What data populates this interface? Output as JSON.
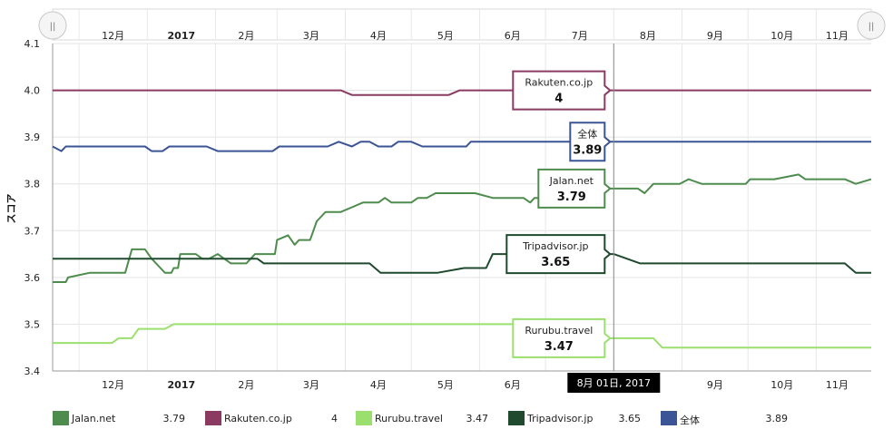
{
  "chart_data": {
    "type": "line",
    "ylabel": "スコア",
    "ylim": [
      3.4,
      4.1
    ],
    "yticks": [
      "3.4",
      "3.5",
      "3.6",
      "3.7",
      "3.8",
      "3.9",
      "4.0",
      "4.1"
    ],
    "x_range": [
      "2016-11-19",
      "2017-11-26"
    ],
    "month_labels": [
      {
        "label": "12月",
        "date": "2016-12-01",
        "bold": false
      },
      {
        "label": "2017",
        "date": "2017-01-01",
        "bold": true
      },
      {
        "label": "2月",
        "date": "2017-02-01",
        "bold": false
      },
      {
        "label": "3月",
        "date": "2017-03-01",
        "bold": false
      },
      {
        "label": "4月",
        "date": "2017-04-01",
        "bold": false
      },
      {
        "label": "5月",
        "date": "2017-05-01",
        "bold": false
      },
      {
        "label": "6月",
        "date": "2017-06-01",
        "bold": false
      },
      {
        "label": "7月",
        "date": "2017-07-01",
        "bold": false
      },
      {
        "label": "8月",
        "date": "2017-08-01",
        "bold": false
      },
      {
        "label": "9月",
        "date": "2017-09-01",
        "bold": false
      },
      {
        "label": "10月",
        "date": "2017-10-01",
        "bold": false
      },
      {
        "label": "11月",
        "date": "2017-11-01",
        "bold": false
      }
    ],
    "series": [
      {
        "name": "Rakuten.co.jp",
        "color": "#8b3a62",
        "current": "4",
        "points": [
          [
            "2016-11-19",
            4.0
          ],
          [
            "2017-03-30",
            4.0
          ],
          [
            "2017-04-04",
            3.99
          ],
          [
            "2017-05-18",
            3.99
          ],
          [
            "2017-05-23",
            4.0
          ],
          [
            "2017-11-26",
            4.0
          ]
        ]
      },
      {
        "name": "全体",
        "color": "#3a5495",
        "current": "3.89",
        "points": [
          [
            "2016-11-19",
            3.88
          ],
          [
            "2016-11-23",
            3.87
          ],
          [
            "2016-11-25",
            3.88
          ],
          [
            "2016-12-31",
            3.88
          ],
          [
            "2017-01-03",
            3.87
          ],
          [
            "2017-01-08",
            3.87
          ],
          [
            "2017-01-11",
            3.88
          ],
          [
            "2017-01-28",
            3.88
          ],
          [
            "2017-02-02",
            3.87
          ],
          [
            "2017-02-27",
            3.87
          ],
          [
            "2017-03-02",
            3.88
          ],
          [
            "2017-03-24",
            3.88
          ],
          [
            "2017-03-29",
            3.89
          ],
          [
            "2017-04-04",
            3.88
          ],
          [
            "2017-04-08",
            3.89
          ],
          [
            "2017-04-12",
            3.89
          ],
          [
            "2017-04-16",
            3.88
          ],
          [
            "2017-04-22",
            3.88
          ],
          [
            "2017-04-25",
            3.89
          ],
          [
            "2017-05-01",
            3.89
          ],
          [
            "2017-05-06",
            3.88
          ],
          [
            "2017-05-26",
            3.88
          ],
          [
            "2017-05-28",
            3.89
          ],
          [
            "2017-11-26",
            3.89
          ]
        ]
      },
      {
        "name": "Jalan.net",
        "color": "#4e8c4e",
        "current": "3.79",
        "points": [
          [
            "2016-11-19",
            3.59
          ],
          [
            "2016-11-25",
            3.59
          ],
          [
            "2016-11-26",
            3.6
          ],
          [
            "2016-12-06",
            3.61
          ],
          [
            "2016-12-22",
            3.61
          ],
          [
            "2016-12-25",
            3.66
          ],
          [
            "2016-12-31",
            3.66
          ],
          [
            "2017-01-03",
            3.64
          ],
          [
            "2017-01-07",
            3.62
          ],
          [
            "2017-01-09",
            3.61
          ],
          [
            "2017-01-12",
            3.61
          ],
          [
            "2017-01-13",
            3.62
          ],
          [
            "2017-01-15",
            3.62
          ],
          [
            "2017-01-16",
            3.65
          ],
          [
            "2017-01-23",
            3.65
          ],
          [
            "2017-01-26",
            3.64
          ],
          [
            "2017-01-29",
            3.64
          ],
          [
            "2017-02-02",
            3.65
          ],
          [
            "2017-02-05",
            3.64
          ],
          [
            "2017-02-08",
            3.63
          ],
          [
            "2017-02-15",
            3.63
          ],
          [
            "2017-02-19",
            3.65
          ],
          [
            "2017-02-25",
            3.65
          ],
          [
            "2017-02-28",
            3.65
          ],
          [
            "2017-03-01",
            3.68
          ],
          [
            "2017-03-06",
            3.69
          ],
          [
            "2017-03-09",
            3.67
          ],
          [
            "2017-03-11",
            3.68
          ],
          [
            "2017-03-16",
            3.68
          ],
          [
            "2017-03-19",
            3.72
          ],
          [
            "2017-03-23",
            3.74
          ],
          [
            "2017-03-30",
            3.74
          ],
          [
            "2017-04-04",
            3.75
          ],
          [
            "2017-04-09",
            3.76
          ],
          [
            "2017-04-16",
            3.76
          ],
          [
            "2017-04-19",
            3.77
          ],
          [
            "2017-04-22",
            3.76
          ],
          [
            "2017-05-01",
            3.76
          ],
          [
            "2017-05-04",
            3.77
          ],
          [
            "2017-05-08",
            3.77
          ],
          [
            "2017-05-12",
            3.78
          ],
          [
            "2017-05-30",
            3.78
          ],
          [
            "2017-06-07",
            3.77
          ],
          [
            "2017-06-21",
            3.77
          ],
          [
            "2017-06-24",
            3.76
          ],
          [
            "2017-06-26",
            3.77
          ],
          [
            "2017-06-30",
            3.77
          ],
          [
            "2017-07-03",
            3.79
          ],
          [
            "2017-08-12",
            3.79
          ],
          [
            "2017-08-15",
            3.78
          ],
          [
            "2017-08-19",
            3.8
          ],
          [
            "2017-08-31",
            3.8
          ],
          [
            "2017-09-04",
            3.81
          ],
          [
            "2017-09-10",
            3.8
          ],
          [
            "2017-09-30",
            3.8
          ],
          [
            "2017-10-02",
            3.81
          ],
          [
            "2017-10-13",
            3.81
          ],
          [
            "2017-10-24",
            3.82
          ],
          [
            "2017-10-27",
            3.81
          ],
          [
            "2017-11-14",
            3.81
          ],
          [
            "2017-11-19",
            3.8
          ],
          [
            "2017-11-26",
            3.81
          ]
        ]
      },
      {
        "name": "Tripadvisor.jp",
        "color": "#1f4a2e",
        "current": "3.65",
        "points": [
          [
            "2016-11-19",
            3.64
          ],
          [
            "2017-02-20",
            3.64
          ],
          [
            "2017-02-23",
            3.63
          ],
          [
            "2017-04-12",
            3.63
          ],
          [
            "2017-04-17",
            3.61
          ],
          [
            "2017-05-13",
            3.61
          ],
          [
            "2017-05-25",
            3.62
          ],
          [
            "2017-06-04",
            3.62
          ],
          [
            "2017-06-07",
            3.65
          ],
          [
            "2017-08-01",
            3.65
          ],
          [
            "2017-08-13",
            3.63
          ],
          [
            "2017-11-14",
            3.63
          ],
          [
            "2017-11-19",
            3.61
          ],
          [
            "2017-11-26",
            3.61
          ]
        ]
      },
      {
        "name": "Rurubu.travel",
        "color": "#9be06f",
        "current": "3.47",
        "points": [
          [
            "2016-11-19",
            3.46
          ],
          [
            "2016-12-16",
            3.46
          ],
          [
            "2016-12-19",
            3.47
          ],
          [
            "2016-12-25",
            3.47
          ],
          [
            "2016-12-28",
            3.49
          ],
          [
            "2017-01-09",
            3.49
          ],
          [
            "2017-01-13",
            3.5
          ],
          [
            "2017-06-24",
            3.5
          ],
          [
            "2017-06-29",
            3.48
          ],
          [
            "2017-07-08",
            3.48
          ],
          [
            "2017-07-15",
            3.47
          ],
          [
            "2017-08-19",
            3.47
          ],
          [
            "2017-08-23",
            3.45
          ],
          [
            "2017-11-26",
            3.45
          ]
        ]
      }
    ],
    "tooltips": [
      {
        "series": "Rakuten.co.jp",
        "title": "Rakuten.co.jp",
        "value": "4"
      },
      {
        "series": "全体",
        "title": "全体",
        "value": "3.89"
      },
      {
        "series": "Jalan.net",
        "title": "Jalan.net",
        "value": "3.79"
      },
      {
        "series": "Tripadvisor.jp",
        "title": "Tripadvisor.jp",
        "value": "3.65"
      },
      {
        "series": "Rurubu.travel",
        "title": "Rurubu.travel",
        "value": "3.47"
      }
    ],
    "crosshair_date": "2017-08-01",
    "crosshair_label": "8月 01日, 2017",
    "legend": [
      {
        "name": "Jalan.net",
        "value": "3.79",
        "color": "#4e8c4e"
      },
      {
        "name": "Rakuten.co.jp",
        "value": "4",
        "color": "#8b3a62"
      },
      {
        "name": "Rurubu.travel",
        "value": "3.47",
        "color": "#9be06f"
      },
      {
        "name": "Tripadvisor.jp",
        "value": "3.65",
        "color": "#1f4a2e"
      },
      {
        "name": "全体",
        "value": "3.89",
        "color": "#3a5495"
      }
    ],
    "navigator": {
      "handle_left": "||",
      "handle_right": "||"
    }
  }
}
